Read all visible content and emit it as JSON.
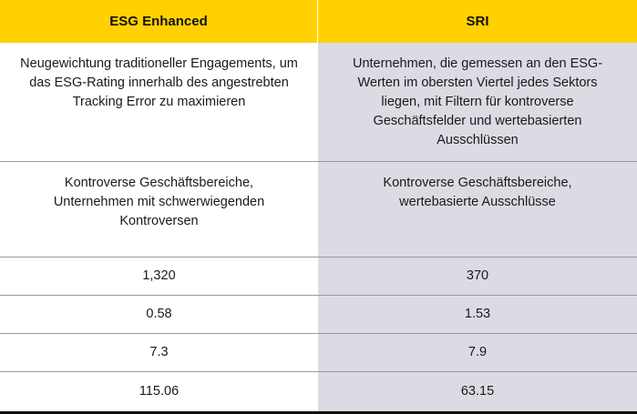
{
  "header": {
    "col1": "ESG Enhanced",
    "col2": "SRI"
  },
  "rows": [
    {
      "col1": "Neugewichtung traditioneller Engagements, um das ESG-Rating innerhalb des angestrebten Tracking Error zu maximieren",
      "col2": "Unternehmen, die gemessen an den ESG-Werten im obersten Viertel jedes Sektors liegen, mit Filtern für kontroverse Geschäftsfelder und wertebasierten Ausschlüssen"
    },
    {
      "col1": "Kontroverse Geschäftsbereiche, Unternehmen mit schwerwiegenden Kontroversen",
      "col2": "Kontroverse Geschäftsbereiche, wertebasierte Ausschlüsse"
    },
    {
      "col1": "1,320",
      "col2": "370"
    },
    {
      "col1": "0.58",
      "col2": "1.53"
    },
    {
      "col1": "7.3",
      "col2": "7.9"
    },
    {
      "col1": "115.06",
      "col2": "63.15"
    }
  ],
  "colors": {
    "header_bg": "#ffd100",
    "right_col_bg": "#dbdbe3",
    "left_col_bg": "#ffffff"
  }
}
